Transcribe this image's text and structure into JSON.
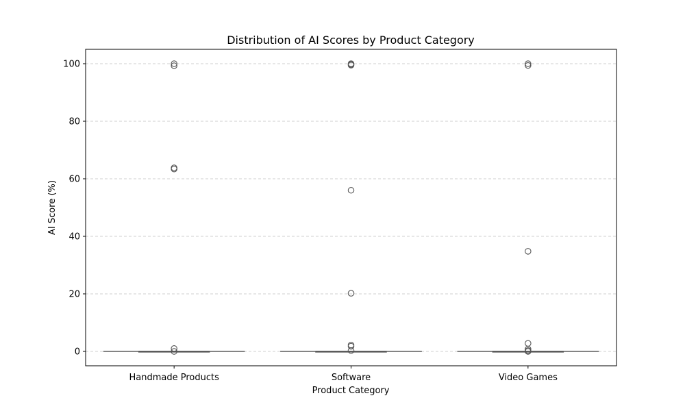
{
  "chart_data": {
    "type": "box",
    "title": "Distribution of AI Scores by Product Category",
    "xlabel": "Product Category",
    "ylabel": "AI Score (%)",
    "ylim": [
      -5,
      105
    ],
    "yticks": [
      0,
      20,
      40,
      60,
      80,
      100
    ],
    "grid": "y-dashed",
    "categories": [
      "Handmade Products",
      "Software",
      "Video Games"
    ],
    "boxes": [
      {
        "category": "Handmade Products",
        "whisker_low": 0,
        "q1": 0,
        "median": 0,
        "q3": 0,
        "whisker_high": 0,
        "outliers": [
          100,
          99.3,
          63.8,
          63.4,
          1,
          0
        ]
      },
      {
        "category": "Software",
        "whisker_low": 0,
        "q1": 0,
        "median": 0,
        "q3": 0,
        "whisker_high": 0,
        "outliers": [
          100,
          99.8,
          99.5,
          56,
          20.2,
          2.2,
          1.8,
          0.3
        ]
      },
      {
        "category": "Video Games",
        "whisker_low": 0,
        "q1": 0,
        "median": 0,
        "q3": 0,
        "whisker_high": 0,
        "outliers": [
          100,
          99.4,
          34.8,
          2.8,
          0.8,
          0.3,
          0
        ]
      }
    ],
    "colors": {
      "box_line": "#555555",
      "outlier": "#555555",
      "grid": "#c0c0c0",
      "axis": "#000000"
    }
  }
}
